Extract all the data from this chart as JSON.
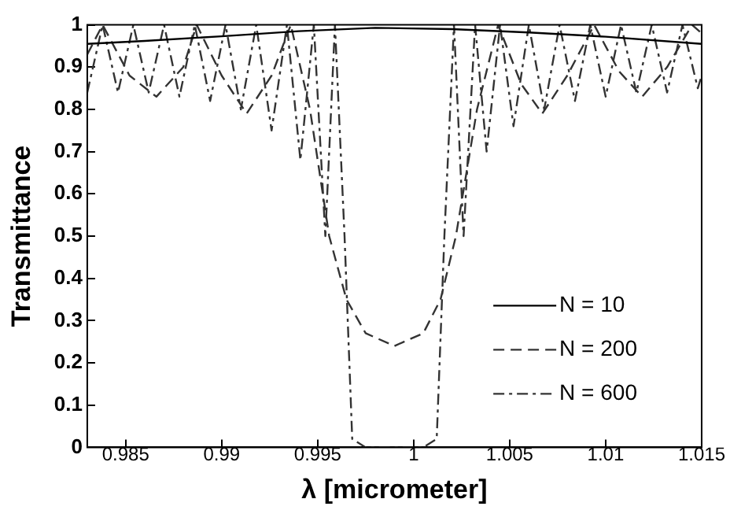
{
  "chart_data": {
    "type": "line",
    "xlabel": "λ [micrometer]",
    "ylabel": "Transmittance",
    "xlim": [
      0.983,
      1.015
    ],
    "xticks": [
      0.985,
      0.99,
      0.995,
      1,
      1.005,
      1.01,
      1.015
    ],
    "ylim": [
      0,
      1
    ],
    "yticks": [
      0,
      0.1,
      0.2,
      0.3,
      0.4,
      0.5,
      0.6,
      0.7,
      0.8,
      0.9,
      1
    ],
    "grid": false,
    "legend": "bottom right",
    "marker": "none",
    "series": [
      {
        "name": "N = 10",
        "color": "#000000",
        "line_style": "solid",
        "x": [
          0.983,
          0.986,
          0.99,
          0.994,
          0.998,
          1.002,
          1.006,
          1.01,
          1.015
        ],
        "values": [
          0.955,
          0.962,
          0.973,
          0.985,
          0.993,
          0.99,
          0.982,
          0.972,
          0.955
        ]
      },
      {
        "name": "N = 200",
        "color": "#333333",
        "line_style": "dashed",
        "x": [
          0.983,
          0.9838,
          0.9852,
          0.9866,
          0.988,
          0.9887,
          0.99,
          0.9913,
          0.9926,
          0.9936,
          0.9946,
          0.9956,
          0.9965,
          0.9975,
          0.999,
          1.0005,
          1.0014,
          1.0022,
          1.0033,
          1.0044,
          1.0056,
          1.0067,
          1.008,
          1.0094,
          1.0107,
          1.0119,
          1.0132,
          1.0145,
          1.015
        ],
        "values": [
          0.93,
          1,
          0.88,
          0.83,
          0.9,
          1,
          0.88,
          0.79,
          0.88,
          1,
          0.8,
          0.5,
          0.35,
          0.27,
          0.24,
          0.27,
          0.35,
          0.5,
          0.8,
          1,
          0.86,
          0.79,
          0.88,
          1,
          0.89,
          0.83,
          0.9,
          1,
          0.98
        ]
      },
      {
        "name": "N = 600",
        "color": "#333333",
        "line_style": "dashdot",
        "x": [
          0.983,
          0.9838,
          0.9846,
          0.9854,
          0.9862,
          0.987,
          0.9878,
          0.9886,
          0.9894,
          0.9902,
          0.991,
          0.9918,
          0.9926,
          0.9934,
          0.9941,
          0.9948,
          0.9954,
          0.9959,
          0.9964,
          0.9968,
          0.9975,
          0.999,
          1.0005,
          1.0012,
          1.0016,
          1.0021,
          1.0026,
          1.0032,
          1.0038,
          1.0045,
          1.0052,
          1.006,
          1.0068,
          1.0076,
          1.0084,
          1.0092,
          1.01,
          1.0108,
          1.0116,
          1.0124,
          1.0132,
          1.014,
          1.0148,
          1.015
        ],
        "values": [
          0.84,
          1,
          0.84,
          1,
          0.84,
          1,
          0.83,
          1,
          0.82,
          1,
          0.8,
          1,
          0.75,
          1,
          0.68,
          1,
          0.5,
          1,
          0.5,
          0.02,
          0,
          0,
          0,
          0.02,
          0.5,
          1,
          0.5,
          1,
          0.7,
          1,
          0.76,
          1,
          0.8,
          1,
          0.82,
          1,
          0.83,
          1,
          0.84,
          1,
          0.84,
          1,
          0.85,
          0.88
        ]
      }
    ]
  }
}
